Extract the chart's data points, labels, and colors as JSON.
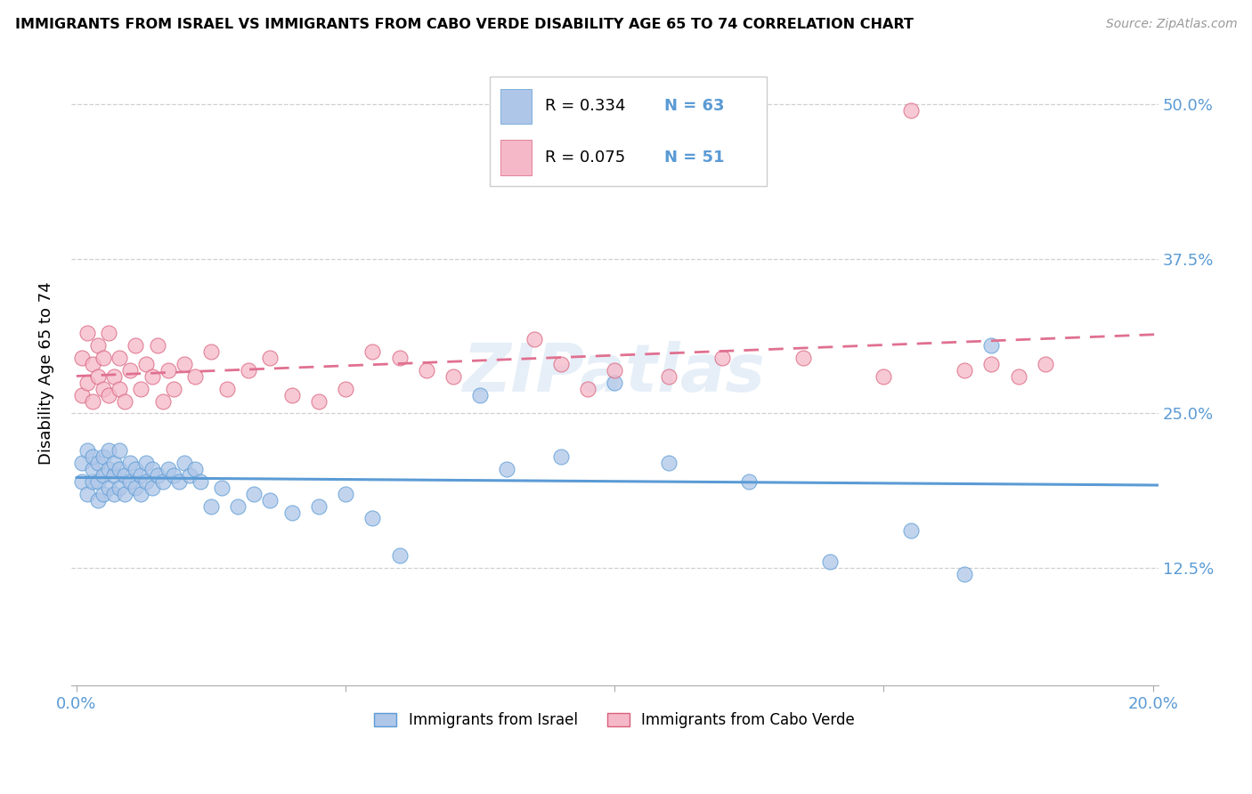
{
  "title": "IMMIGRANTS FROM ISRAEL VS IMMIGRANTS FROM CABO VERDE DISABILITY AGE 65 TO 74 CORRELATION CHART",
  "source": "Source: ZipAtlas.com",
  "ylabel": "Disability Age 65 to 74",
  "legend_label_1": "Immigrants from Israel",
  "legend_label_2": "Immigrants from Cabo Verde",
  "R1": "0.334",
  "N1": "63",
  "R2": "0.075",
  "N2": "51",
  "color_israel_fill": "#aec6e8",
  "color_israel_edge": "#5b9bd5",
  "color_cabo_fill": "#f5b8c8",
  "color_cabo_edge": "#d9607a",
  "color_israel_line": "#5b9bd5",
  "color_cabo_line": "#e07090",
  "watermark": "ZIPatlas",
  "xlim": [
    -0.001,
    0.201
  ],
  "ylim": [
    0.03,
    0.535
  ],
  "ytick_vals": [
    0.125,
    0.25,
    0.375,
    0.5
  ],
  "ytick_labels": [
    "12.5%",
    "25.0%",
    "37.5%",
    "50.0%"
  ],
  "xtick_vals": [
    0.0,
    0.05,
    0.1,
    0.15,
    0.2
  ],
  "xtick_labels": [
    "0.0%",
    "",
    "",
    "",
    "20.0%"
  ],
  "israel_x": [
    0.001,
    0.001,
    0.002,
    0.002,
    0.003,
    0.003,
    0.003,
    0.004,
    0.004,
    0.004,
    0.005,
    0.005,
    0.005,
    0.006,
    0.006,
    0.006,
    0.007,
    0.007,
    0.007,
    0.008,
    0.008,
    0.008,
    0.009,
    0.009,
    0.01,
    0.01,
    0.011,
    0.011,
    0.012,
    0.012,
    0.013,
    0.013,
    0.014,
    0.014,
    0.015,
    0.016,
    0.017,
    0.018,
    0.019,
    0.02,
    0.021,
    0.022,
    0.023,
    0.025,
    0.027,
    0.03,
    0.033,
    0.036,
    0.04,
    0.045,
    0.05,
    0.055,
    0.06,
    0.075,
    0.08,
    0.09,
    0.1,
    0.11,
    0.125,
    0.14,
    0.155,
    0.165,
    0.17
  ],
  "israel_y": [
    0.195,
    0.21,
    0.185,
    0.22,
    0.195,
    0.205,
    0.215,
    0.18,
    0.195,
    0.21,
    0.185,
    0.2,
    0.215,
    0.19,
    0.205,
    0.22,
    0.185,
    0.2,
    0.21,
    0.19,
    0.205,
    0.22,
    0.185,
    0.2,
    0.195,
    0.21,
    0.19,
    0.205,
    0.185,
    0.2,
    0.195,
    0.21,
    0.19,
    0.205,
    0.2,
    0.195,
    0.205,
    0.2,
    0.195,
    0.21,
    0.2,
    0.205,
    0.195,
    0.175,
    0.19,
    0.175,
    0.185,
    0.18,
    0.17,
    0.175,
    0.185,
    0.165,
    0.135,
    0.265,
    0.205,
    0.215,
    0.275,
    0.21,
    0.195,
    0.13,
    0.155,
    0.12,
    0.305
  ],
  "cabo_x": [
    0.001,
    0.001,
    0.002,
    0.002,
    0.003,
    0.003,
    0.004,
    0.004,
    0.005,
    0.005,
    0.006,
    0.006,
    0.007,
    0.008,
    0.008,
    0.009,
    0.01,
    0.011,
    0.012,
    0.013,
    0.014,
    0.015,
    0.016,
    0.017,
    0.018,
    0.02,
    0.022,
    0.025,
    0.028,
    0.032,
    0.036,
    0.04,
    0.045,
    0.05,
    0.055,
    0.06,
    0.065,
    0.07,
    0.085,
    0.09,
    0.095,
    0.1,
    0.11,
    0.12,
    0.135,
    0.15,
    0.165,
    0.17,
    0.175,
    0.18,
    0.155
  ],
  "cabo_y": [
    0.265,
    0.295,
    0.275,
    0.315,
    0.26,
    0.29,
    0.28,
    0.305,
    0.27,
    0.295,
    0.265,
    0.315,
    0.28,
    0.27,
    0.295,
    0.26,
    0.285,
    0.305,
    0.27,
    0.29,
    0.28,
    0.305,
    0.26,
    0.285,
    0.27,
    0.29,
    0.28,
    0.3,
    0.27,
    0.285,
    0.295,
    0.265,
    0.26,
    0.27,
    0.3,
    0.295,
    0.285,
    0.28,
    0.31,
    0.29,
    0.27,
    0.285,
    0.28,
    0.295,
    0.295,
    0.28,
    0.285,
    0.29,
    0.28,
    0.29,
    0.495
  ]
}
